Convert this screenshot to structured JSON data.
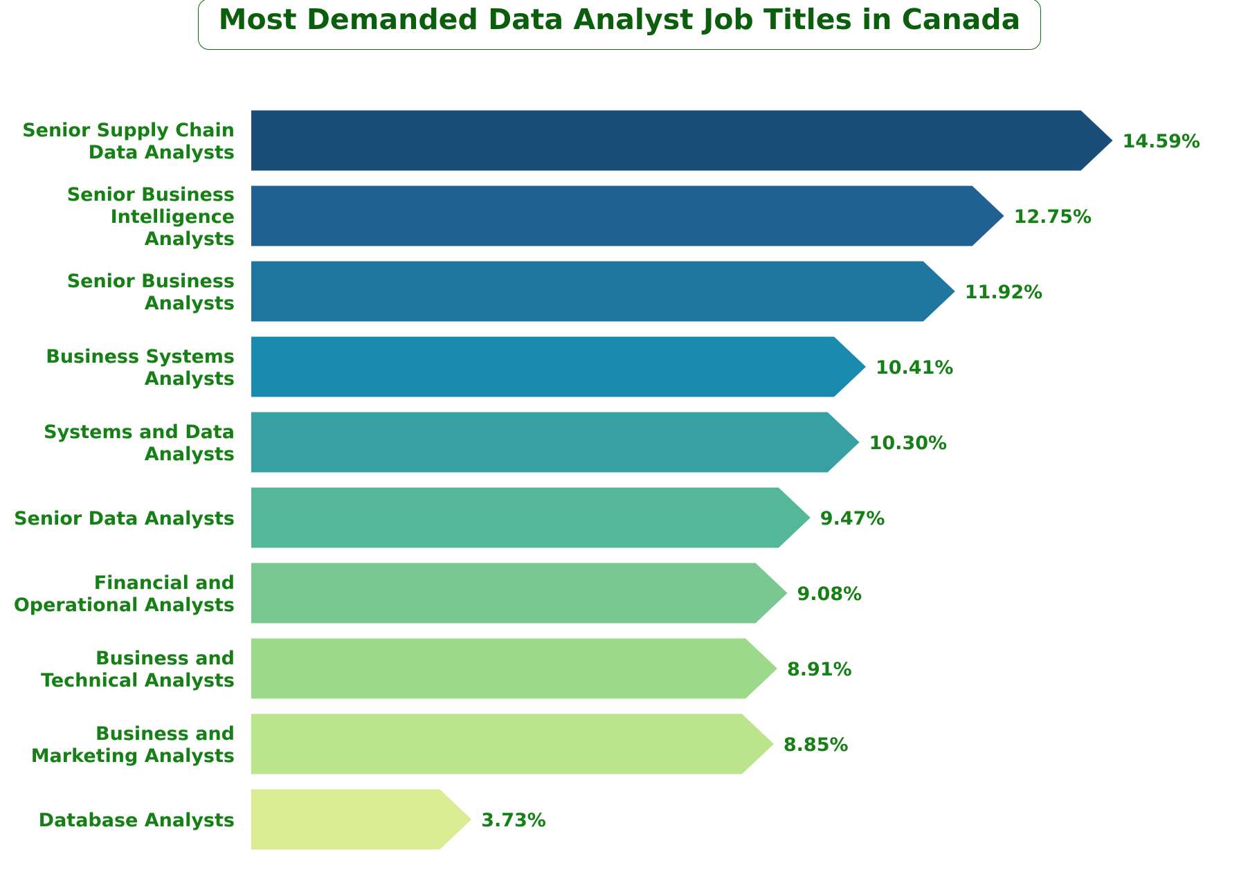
{
  "chart_data": {
    "type": "bar",
    "orientation": "horizontal",
    "title": "Most Demanded Data Analyst Job Titles in Canada",
    "xlabel": "",
    "ylabel": "",
    "categories": [
      "Senior Supply Chain Data Analysts",
      "Senior Business Intelligence Analysts",
      "Senior Business Analysts",
      "Business Systems Analysts",
      "Systems and Data Analysts",
      "Senior Data Analysts",
      "Financial and Operational Analysts",
      "Business and Technical Analysts",
      "Business and Marketing Analysts",
      "Database Analysts"
    ],
    "category_label_lines": [
      [
        "Senior Supply Chain",
        "Data Analysts"
      ],
      [
        "Senior Business",
        "Intelligence",
        "Analysts"
      ],
      [
        "Senior Business",
        "Analysts"
      ],
      [
        "Business Systems",
        "Analysts"
      ],
      [
        "Systems and Data",
        "Analysts"
      ],
      [
        "Senior Data Analysts"
      ],
      [
        "Financial and",
        "Operational Analysts"
      ],
      [
        "Business and",
        "Technical Analysts"
      ],
      [
        "Business and",
        "Marketing Analysts"
      ],
      [
        "Database Analysts"
      ]
    ],
    "values": [
      14.59,
      12.75,
      11.92,
      10.41,
      10.3,
      9.47,
      9.08,
      8.91,
      8.85,
      3.73
    ],
    "value_labels": [
      "14.59%",
      "12.75%",
      "11.92%",
      "10.41%",
      "10.30%",
      "9.47%",
      "9.08%",
      "8.91%",
      "8.85%",
      "3.73%"
    ],
    "unit": "%",
    "bar_shape": "arrow",
    "colors": [
      "#1a4e78",
      "#216192",
      "#1f77a0",
      "#1a8bae",
      "#37a0a2",
      "#54b797",
      "#79c891",
      "#9dd98a",
      "#bae58c",
      "#d9ec91"
    ],
    "text_color": "#168016",
    "title_color": "#0b5e0b",
    "grid": false,
    "axes_visible": false,
    "legend": "none"
  }
}
